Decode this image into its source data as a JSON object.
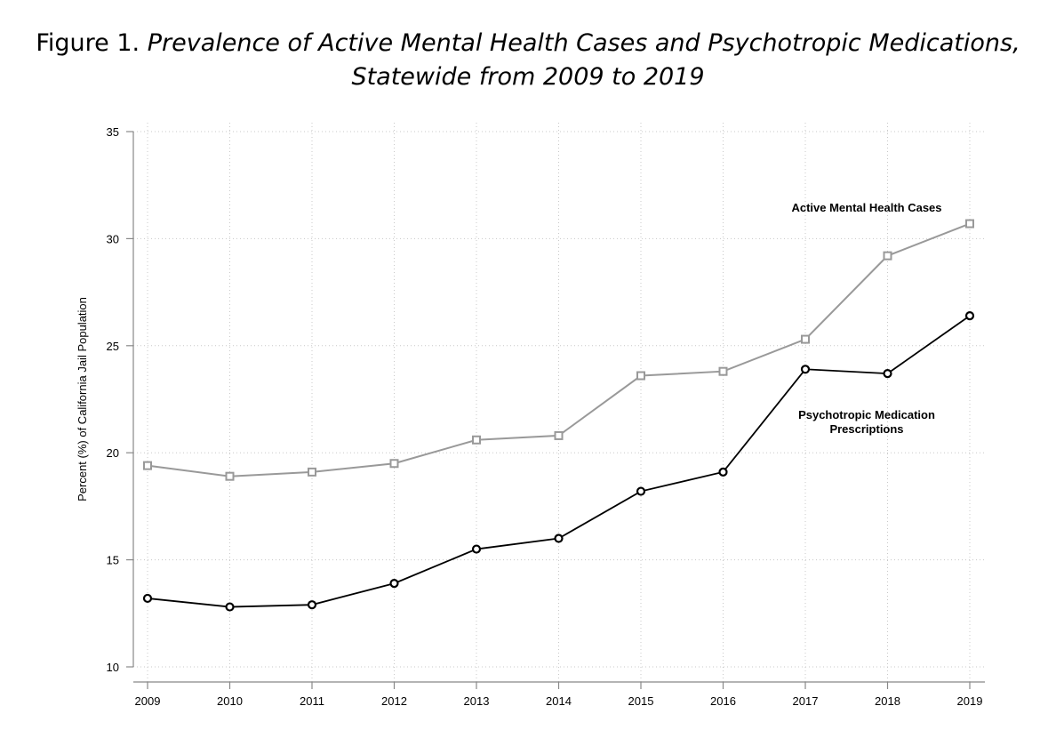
{
  "figure": {
    "prefix": "Figure 1.",
    "title_line1": "Prevalence of Active Mental Health Cases and Psychotropic Medications,",
    "title_line2": "Statewide from 2009 to 2019"
  },
  "chart_data": {
    "type": "line",
    "title": "Prevalence of Active Mental Health Cases and Psychotropic Medications, Statewide from 2009 to 2019",
    "xlabel": "",
    "ylabel": "Percent (%) of California Jail Population",
    "x": [
      2009,
      2010,
      2011,
      2012,
      2013,
      2014,
      2015,
      2016,
      2017,
      2018,
      2019
    ],
    "ylim": [
      10,
      35
    ],
    "yticks": [
      10,
      15,
      20,
      25,
      30,
      35
    ],
    "grid": true,
    "series": [
      {
        "name": "Active Mental Health Cases",
        "color": "#999999",
        "marker": "square",
        "values": [
          19.4,
          18.9,
          19.1,
          19.5,
          20.6,
          20.8,
          23.6,
          23.8,
          25.3,
          29.2,
          30.7
        ]
      },
      {
        "name": "Psychotropic Medication Prescriptions",
        "color": "#000000",
        "marker": "circle",
        "values": [
          13.2,
          12.8,
          12.9,
          13.9,
          15.5,
          16.0,
          18.2,
          19.1,
          23.9,
          23.7,
          26.4
        ]
      }
    ],
    "series_labels": [
      {
        "lines": [
          "Active Mental Health Cases"
        ]
      },
      {
        "lines": [
          "Psychotropic Medication",
          "Prescriptions"
        ]
      }
    ]
  }
}
